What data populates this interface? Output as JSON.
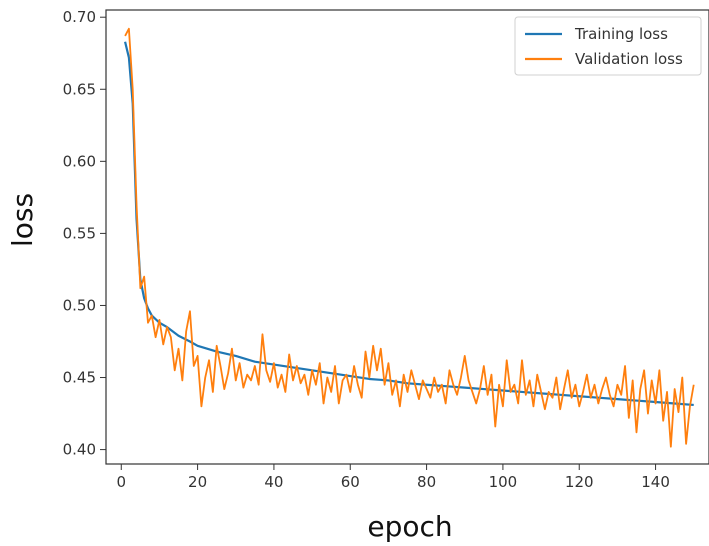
{
  "chart_data": {
    "type": "line",
    "title": "",
    "xlabel": "epoch",
    "ylabel": "loss",
    "xlim": [
      -4,
      154
    ],
    "ylim": [
      0.39,
      0.705
    ],
    "xticks": [
      0,
      20,
      40,
      60,
      80,
      100,
      120,
      140
    ],
    "yticks": [
      0.4,
      0.45,
      0.5,
      0.55,
      0.6,
      0.65,
      0.7
    ],
    "grid": false,
    "legend_position": "top-right",
    "series": [
      {
        "name": "Training loss",
        "color": "#1f77b4",
        "x": [
          1,
          2,
          3,
          4,
          5,
          6,
          7,
          8,
          10,
          12,
          15,
          18,
          20,
          25,
          30,
          35,
          40,
          45,
          50,
          55,
          60,
          65,
          70,
          75,
          80,
          85,
          90,
          95,
          100,
          105,
          110,
          115,
          120,
          125,
          130,
          135,
          140,
          145,
          150
        ],
        "values": [
          0.683,
          0.672,
          0.64,
          0.56,
          0.518,
          0.505,
          0.498,
          0.493,
          0.488,
          0.485,
          0.479,
          0.475,
          0.472,
          0.468,
          0.465,
          0.461,
          0.459,
          0.457,
          0.455,
          0.453,
          0.451,
          0.449,
          0.448,
          0.446,
          0.445,
          0.444,
          0.443,
          0.442,
          0.441,
          0.44,
          0.439,
          0.438,
          0.437,
          0.436,
          0.435,
          0.434,
          0.433,
          0.432,
          0.431
        ]
      },
      {
        "name": "Validation loss",
        "color": "#ff7f0e",
        "x": [
          1,
          2,
          3,
          4,
          5,
          6,
          7,
          8,
          9,
          10,
          11,
          12,
          13,
          14,
          15,
          16,
          17,
          18,
          19,
          20,
          21,
          22,
          23,
          24,
          25,
          26,
          27,
          28,
          29,
          30,
          31,
          32,
          33,
          34,
          35,
          36,
          37,
          38,
          39,
          40,
          41,
          42,
          43,
          44,
          45,
          46,
          47,
          48,
          49,
          50,
          51,
          52,
          53,
          54,
          55,
          56,
          57,
          58,
          59,
          60,
          61,
          62,
          63,
          64,
          65,
          66,
          67,
          68,
          69,
          70,
          71,
          72,
          73,
          74,
          75,
          76,
          77,
          78,
          79,
          80,
          81,
          82,
          83,
          84,
          85,
          86,
          87,
          88,
          89,
          90,
          91,
          92,
          93,
          94,
          95,
          96,
          97,
          98,
          99,
          100,
          101,
          102,
          103,
          104,
          105,
          106,
          107,
          108,
          109,
          110,
          111,
          112,
          113,
          114,
          115,
          116,
          117,
          118,
          119,
          120,
          121,
          122,
          123,
          124,
          125,
          126,
          127,
          128,
          129,
          130,
          131,
          132,
          133,
          134,
          135,
          136,
          137,
          138,
          139,
          140,
          141,
          142,
          143,
          144,
          145,
          146,
          147,
          148,
          149,
          150
        ],
        "values": [
          0.687,
          0.692,
          0.65,
          0.57,
          0.512,
          0.52,
          0.488,
          0.493,
          0.478,
          0.49,
          0.473,
          0.485,
          0.478,
          0.455,
          0.47,
          0.448,
          0.482,
          0.496,
          0.458,
          0.465,
          0.43,
          0.45,
          0.462,
          0.44,
          0.472,
          0.458,
          0.442,
          0.453,
          0.47,
          0.448,
          0.46,
          0.443,
          0.452,
          0.448,
          0.458,
          0.445,
          0.48,
          0.455,
          0.447,
          0.46,
          0.443,
          0.452,
          0.44,
          0.466,
          0.448,
          0.458,
          0.446,
          0.452,
          0.438,
          0.455,
          0.445,
          0.46,
          0.432,
          0.45,
          0.44,
          0.458,
          0.432,
          0.448,
          0.452,
          0.44,
          0.458,
          0.445,
          0.436,
          0.468,
          0.45,
          0.472,
          0.455,
          0.47,
          0.445,
          0.46,
          0.438,
          0.448,
          0.43,
          0.452,
          0.44,
          0.455,
          0.445,
          0.435,
          0.448,
          0.442,
          0.436,
          0.45,
          0.44,
          0.445,
          0.432,
          0.455,
          0.445,
          0.438,
          0.45,
          0.465,
          0.448,
          0.44,
          0.432,
          0.442,
          0.458,
          0.438,
          0.452,
          0.416,
          0.445,
          0.43,
          0.462,
          0.44,
          0.445,
          0.432,
          0.462,
          0.438,
          0.448,
          0.43,
          0.452,
          0.44,
          0.428,
          0.44,
          0.436,
          0.45,
          0.428,
          0.442,
          0.455,
          0.436,
          0.445,
          0.43,
          0.44,
          0.452,
          0.436,
          0.445,
          0.432,
          0.442,
          0.45,
          0.438,
          0.43,
          0.445,
          0.438,
          0.458,
          0.422,
          0.448,
          0.412,
          0.442,
          0.455,
          0.425,
          0.448,
          0.432,
          0.455,
          0.42,
          0.44,
          0.402,
          0.442,
          0.426,
          0.45,
          0.404,
          0.43,
          0.445
        ]
      }
    ]
  }
}
